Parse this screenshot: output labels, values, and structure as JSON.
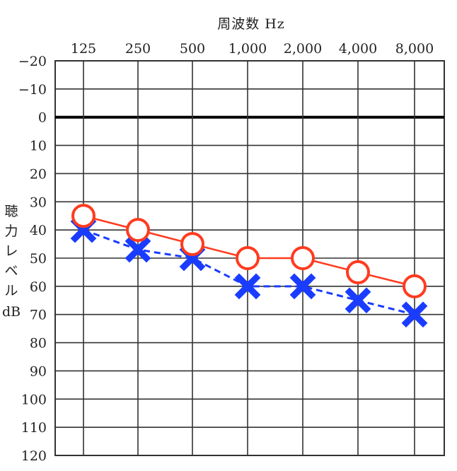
{
  "chart_data": {
    "type": "line",
    "title": "周波数 Hz",
    "ylabel": "聴力レベル dB",
    "categories": [
      "125",
      "250",
      "500",
      "1,000",
      "2,000",
      "4,000",
      "8,000"
    ],
    "y_ticks": [
      "−20",
      "−10",
      "0",
      "10",
      "20",
      "30",
      "40",
      "50",
      "60",
      "70",
      "80",
      "90",
      "100",
      "110",
      "120"
    ],
    "ylim": [
      -20,
      120
    ],
    "y_inverted": true,
    "grid": true,
    "series": [
      {
        "marker": "circle",
        "color": "#ff3b1f",
        "line": "solid",
        "values": [
          35,
          40,
          45,
          50,
          50,
          55,
          60
        ]
      },
      {
        "marker": "cross",
        "color": "#1a3cff",
        "line": "dashed",
        "values": [
          40,
          47,
          50,
          60,
          60,
          65,
          70
        ]
      }
    ]
  }
}
